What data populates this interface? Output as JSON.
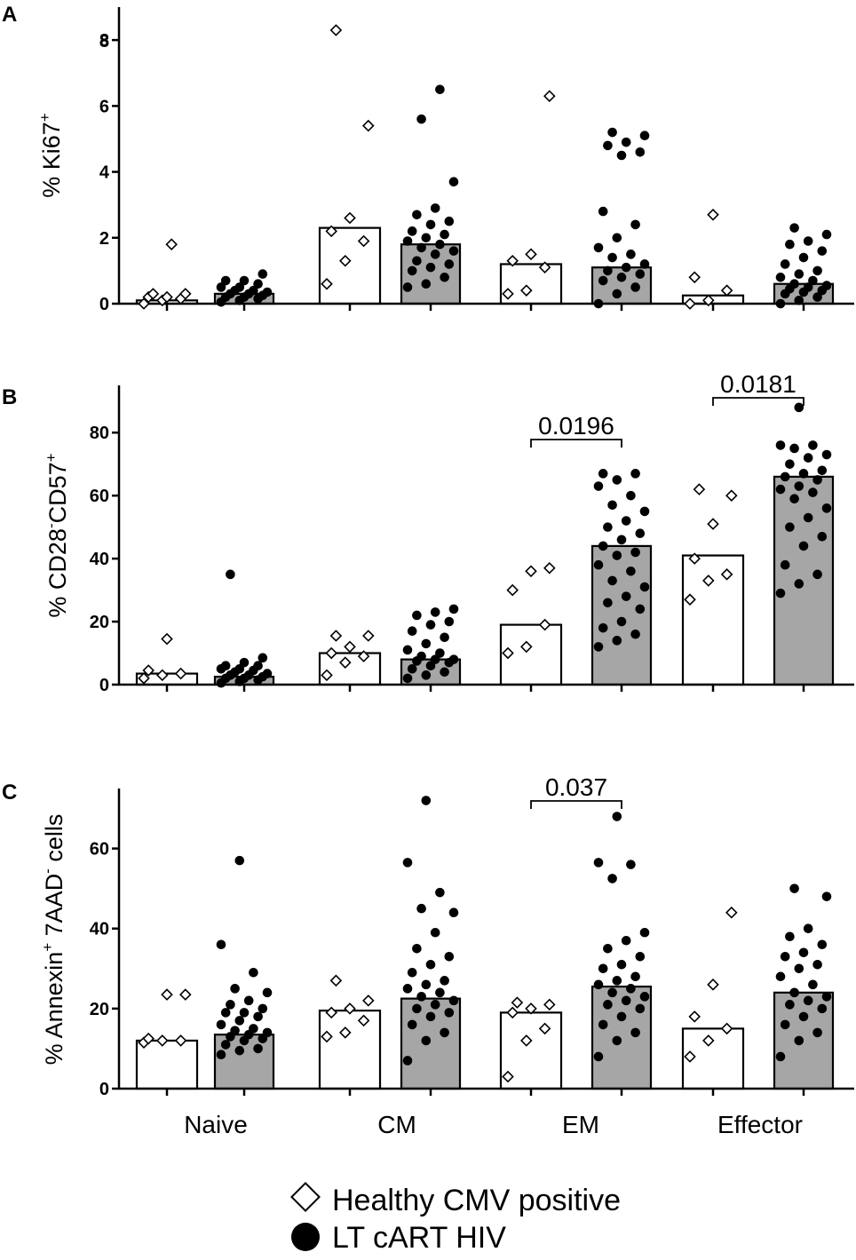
{
  "chart_data": [
    {
      "panel": "A",
      "type": "bar",
      "ylabel": {
        "prefix": "% Ki67",
        "sup": "+"
      },
      "ylim": [
        0,
        9
      ],
      "yticks": [
        0,
        2,
        4,
        6,
        8
      ],
      "yticks_overprinted": [
        "8"
      ],
      "categories": [
        "Naive",
        "CM",
        "EM",
        "Effector"
      ],
      "series": [
        {
          "name": "Healthy CMV positive",
          "bars": [
            0.1,
            2.3,
            1.2,
            0.25
          ],
          "points": [
            [
              0.3,
              0.2,
              0.0,
              0.1,
              0.15,
              0.2,
              0.3,
              1.8
            ],
            [
              0.6,
              1.3,
              1.9,
              2.2,
              2.6,
              5.4,
              8.3
            ],
            [
              0.3,
              0.4,
              1.1,
              1.3,
              1.5,
              6.3
            ],
            [
              0.0,
              0.1,
              0.4,
              0.8,
              2.7
            ]
          ]
        },
        {
          "name": "LT cART HIV",
          "bars": [
            0.3,
            1.8,
            1.1,
            0.6
          ],
          "points": [
            [
              0.05,
              0.1,
              0.15,
              0.2,
              0.2,
              0.25,
              0.3,
              0.3,
              0.35,
              0.4,
              0.4,
              0.5,
              0.5,
              0.6,
              0.7,
              0.7,
              0.9
            ],
            [
              0.5,
              0.6,
              0.8,
              1.0,
              1.1,
              1.2,
              1.3,
              1.5,
              1.6,
              1.7,
              1.8,
              1.9,
              2.0,
              2.1,
              2.2,
              2.4,
              2.5,
              2.7,
              2.9,
              3.7,
              5.6,
              6.5
            ],
            [
              0.0,
              0.3,
              0.5,
              0.7,
              0.8,
              0.9,
              1.0,
              1.1,
              1.2,
              1.4,
              1.5,
              1.7,
              2.0,
              2.4,
              2.8,
              4.5,
              4.6,
              4.8,
              4.9,
              5.1,
              5.2
            ],
            [
              0.0,
              0.1,
              0.2,
              0.3,
              0.35,
              0.4,
              0.45,
              0.5,
              0.55,
              0.6,
              0.7,
              0.8,
              0.9,
              1.0,
              1.2,
              1.4,
              1.6,
              1.8,
              1.9,
              2.1,
              2.3
            ]
          ]
        }
      ],
      "annotations": []
    },
    {
      "panel": "B",
      "type": "bar",
      "ylabel": {
        "prefix": "% CD28",
        "sup1": "-",
        "mid": "CD57",
        "sup2": "+"
      },
      "ylim": [
        0,
        95
      ],
      "yticks": [
        0,
        20,
        40,
        60,
        80
      ],
      "categories": [
        "Naive",
        "CM",
        "EM",
        "Effector"
      ],
      "series": [
        {
          "name": "Healthy CMV positive",
          "bars": [
            3.5,
            10.0,
            19.0,
            41.0
          ],
          "points": [
            [
              2,
              3,
              3.5,
              4.5,
              14.5
            ],
            [
              3,
              7,
              9,
              10,
              12,
              15.5,
              15.5
            ],
            [
              10,
              12,
              19,
              30,
              36,
              37
            ],
            [
              27,
              33,
              35,
              40,
              51,
              60,
              62
            ]
          ]
        },
        {
          "name": "LT cART HIV",
          "bars": [
            2.5,
            8.0,
            44.0,
            66.0
          ],
          "points": [
            [
              0.5,
              1,
              1.5,
              2,
              2,
              2.5,
              3,
              3,
              3.5,
              4,
              4.5,
              5,
              5,
              6,
              6,
              7,
              8.5,
              35
            ],
            [
              2,
              3,
              4,
              5,
              6,
              7,
              7.5,
              8,
              8,
              9,
              10,
              11,
              13,
              15,
              17,
              19,
              20,
              22,
              23,
              24
            ],
            [
              12,
              14,
              16,
              18,
              20,
              24,
              26,
              28,
              31,
              33,
              36,
              38,
              41,
              42,
              44,
              46,
              48,
              50,
              52,
              55,
              57,
              60,
              63,
              65,
              67,
              67
            ],
            [
              29,
              32,
              35,
              38,
              44,
              47,
              50,
              53,
              56,
              59,
              61,
              62,
              63,
              65,
              66,
              67,
              68,
              70,
              72,
              73,
              75,
              76,
              76,
              88
            ]
          ]
        }
      ],
      "annotations": [
        {
          "text": "0.0196",
          "between": [
            2,
            2
          ]
        },
        {
          "text": "0.0181",
          "between": [
            3,
            3
          ]
        }
      ]
    },
    {
      "panel": "C",
      "type": "bar",
      "ylabel": {
        "prefix": "% Annexin",
        "sup1": "+",
        "mid": " 7AAD",
        "sup2": "-",
        "suffix": " cells"
      },
      "ylim": [
        0,
        75
      ],
      "yticks": [
        0,
        20,
        40,
        60
      ],
      "categories": [
        "Naive",
        "CM",
        "EM",
        "Effector"
      ],
      "series": [
        {
          "name": "Healthy CMV positive",
          "bars": [
            12.0,
            19.5,
            19.0,
            15.0
          ],
          "points": [
            [
              11.5,
              12,
              12,
              12.5,
              23.5,
              23.5
            ],
            [
              13,
              14,
              17,
              19,
              20,
              22,
              27
            ],
            [
              3,
              12,
              15,
              19,
              20,
              21,
              21.5
            ],
            [
              8,
              12,
              15,
              18,
              26,
              44
            ]
          ]
        },
        {
          "name": "LT cART HIV",
          "bars": [
            13.5,
            22.5,
            25.5,
            24.0
          ],
          "points": [
            [
              8.5,
              9.5,
              10,
              11,
              12,
              12.5,
              13,
              13.5,
              14,
              14.5,
              15,
              16,
              17,
              18,
              19,
              19,
              20,
              21,
              22,
              24,
              25,
              29,
              36,
              57
            ],
            [
              7,
              12,
              14,
              16,
              18,
              19,
              20,
              21,
              22,
              23,
              24,
              25,
              26,
              27,
              29,
              31,
              33,
              35,
              39,
              44,
              45,
              49,
              56.5,
              72
            ],
            [
              8,
              12,
              14,
              16,
              18,
              20,
              21,
              22,
              23,
              24,
              25,
              26,
              27,
              28,
              30,
              31,
              33,
              35,
              37,
              39,
              52.5,
              56,
              56.5,
              68
            ],
            [
              8,
              12,
              14,
              16,
              18,
              20,
              21,
              22,
              23,
              24,
              26,
              28,
              30,
              31,
              33,
              34,
              36,
              38,
              40,
              48,
              50
            ]
          ]
        }
      ],
      "annotations": [
        {
          "text": "0.037",
          "between": [
            2,
            2
          ]
        }
      ]
    }
  ],
  "panel_labels": [
    "A",
    "B",
    "C"
  ],
  "x_categories": [
    "Naive",
    "CM",
    "EM",
    "Effector"
  ],
  "legend": [
    {
      "label": "Healthy CMV positive",
      "marker": "diamond-open"
    },
    {
      "label": "LT cART HIV",
      "marker": "circle-filled"
    }
  ],
  "colors": {
    "bar_hiv": "#a6a6a6",
    "bar_healthy": "#ffffff",
    "ink": "#000000"
  }
}
